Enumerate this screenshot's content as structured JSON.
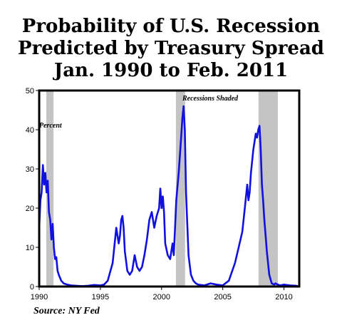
{
  "chart_data": {
    "type": "line",
    "title": [
      "Probability of U.S. Recession",
      "Predicted by Treasury Spread",
      "Jan. 1990 to Feb. 2011"
    ],
    "ylabel": "Percent",
    "annotation": "Recessions Shaded",
    "source": "Source: NY Fed",
    "xlim": [
      1990,
      2011.25
    ],
    "ylim": [
      0,
      50
    ],
    "xticks": [
      1990,
      1995,
      2000,
      2005,
      2010
    ],
    "yticks": [
      0,
      10,
      20,
      30,
      40,
      50
    ],
    "grid": false,
    "line_color": "#1010e0",
    "shade_color": "#c4c4c4",
    "recessions": [
      [
        1990.58,
        1991.17
      ],
      [
        2001.17,
        2001.92
      ],
      [
        2007.92,
        2009.5
      ]
    ],
    "series": [
      {
        "x": [
          1990.0,
          1990.1,
          1990.2,
          1990.3,
          1990.4,
          1990.5,
          1990.6,
          1990.7,
          1990.8,
          1990.9,
          1991.0,
          1991.1,
          1991.2,
          1991.3,
          1991.4,
          1991.5,
          1991.6,
          1991.8,
          1992.0,
          1992.3,
          1992.6,
          1993.0,
          1993.5,
          1994.0,
          1994.5,
          1995.0,
          1995.3,
          1995.6,
          1996.0,
          1996.3,
          1996.5,
          1996.6,
          1996.7,
          1996.8,
          1996.9,
          1997.0,
          1997.2,
          1997.4,
          1997.6,
          1997.8,
          1998.0,
          1998.2,
          1998.4,
          1998.6,
          1998.8,
          1999.0,
          1999.2,
          1999.4,
          1999.6,
          1999.8,
          1999.9,
          2000.0,
          2000.1,
          2000.2,
          2000.3,
          2000.5,
          2000.7,
          2000.9,
          2001.0,
          2001.1,
          2001.2,
          2001.4,
          2001.6,
          2001.7,
          2001.8,
          2001.9,
          2002.0,
          2002.2,
          2002.4,
          2002.6,
          2002.8,
          2003.0,
          2003.5,
          2004.0,
          2004.5,
          2005.0,
          2005.5,
          2006.0,
          2006.3,
          2006.6,
          2006.8,
          2007.0,
          2007.1,
          2007.2,
          2007.3,
          2007.5,
          2007.7,
          2007.8,
          2007.9,
          2008.0,
          2008.1,
          2008.2,
          2008.3,
          2008.4,
          2008.5,
          2008.6,
          2008.8,
          2009.0,
          2009.2,
          2009.3,
          2009.5,
          2009.7,
          2010.0,
          2010.5,
          2011.0,
          2011.1
        ],
        "y": [
          15,
          22,
          24,
          31,
          26,
          29,
          24,
          27,
          19,
          17,
          12,
          16,
          10,
          7,
          7.5,
          4,
          3,
          1.5,
          0.8,
          0.5,
          0.3,
          0.2,
          0.1,
          0.2,
          0.4,
          0.3,
          0.5,
          1.5,
          6,
          15,
          11,
          13,
          17,
          18,
          15,
          9,
          4,
          3,
          4,
          8,
          5,
          4,
          5,
          8,
          12,
          17,
          19,
          15,
          18,
          20,
          25,
          20,
          23,
          19,
          11,
          8,
          7,
          11,
          8,
          15,
          22,
          29,
          38,
          43,
          46,
          40,
          24,
          8,
          3,
          1.5,
          0.8,
          0.5,
          0.3,
          0.8,
          0.5,
          0.3,
          1.5,
          6,
          10,
          14,
          20,
          26,
          22,
          24,
          29,
          35,
          39,
          38,
          40,
          41,
          35,
          26,
          22,
          17,
          13,
          9,
          3,
          0.8,
          0.5,
          0.8,
          0.5,
          0.3,
          0.5,
          0.3,
          0.2,
          0.1
        ]
      }
    ]
  }
}
